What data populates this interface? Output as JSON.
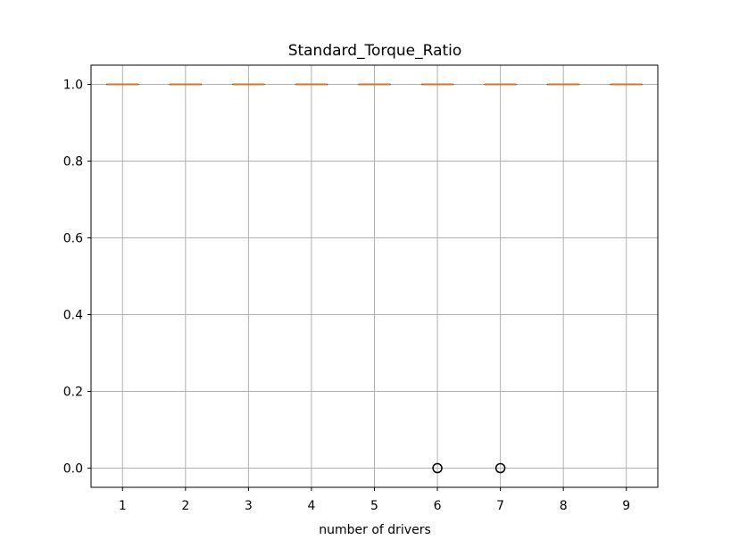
{
  "chart_data": {
    "type": "box",
    "title": "Standard_Torque_Ratio",
    "xlabel": "number of drivers",
    "ylabel": "",
    "categories": [
      "1",
      "2",
      "3",
      "4",
      "5",
      "6",
      "7",
      "8",
      "9"
    ],
    "medians": [
      1.0,
      1.0,
      1.0,
      1.0,
      1.0,
      1.0,
      1.0,
      1.0,
      1.0
    ],
    "q1": [
      1.0,
      1.0,
      1.0,
      1.0,
      1.0,
      1.0,
      1.0,
      1.0,
      1.0
    ],
    "q3": [
      1.0,
      1.0,
      1.0,
      1.0,
      1.0,
      1.0,
      1.0,
      1.0,
      1.0
    ],
    "outliers": [
      {
        "category": "6",
        "value": 0.0
      },
      {
        "category": "7",
        "value": 0.0
      }
    ],
    "yticks": [
      "0.0",
      "0.2",
      "0.4",
      "0.6",
      "0.8",
      "1.0"
    ],
    "ylim": [
      -0.05,
      1.05
    ],
    "grid": true,
    "colors": {
      "median": "#e07020",
      "box": "#000000",
      "grid": "#b0b0b0",
      "outlier_edge": "#000000"
    }
  }
}
